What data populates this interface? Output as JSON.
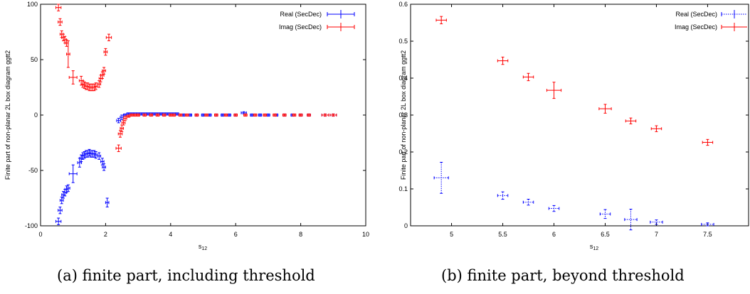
{
  "captions": [
    "(a) finite part, including threshold",
    "(b) finite part, beyond threshold"
  ],
  "chart_data": [
    {
      "type": "scatter",
      "ylabel": "Finite part of non-planar 2L box diagram ggtt2",
      "xlabel_main": "s",
      "xlabel_sub": "12",
      "xlim": [
        0,
        10
      ],
      "ylim": [
        -100,
        100
      ],
      "xticks": [
        "0",
        "2",
        "4",
        "6",
        "8",
        "10"
      ],
      "yticks": [
        "-100",
        "-50",
        "0",
        "50",
        "100"
      ],
      "legend_position": "top-right",
      "series": [
        {
          "name": "Real (SecDec)",
          "color": "#0000ff",
          "points": [
            {
              "x": 0.55,
              "y": -96,
              "ex": 0.08,
              "ey": 3
            },
            {
              "x": 0.6,
              "y": -86,
              "ex": 0.06,
              "ey": 3
            },
            {
              "x": 0.65,
              "y": -77,
              "ex": 0.05,
              "ey": 3
            },
            {
              "x": 0.7,
              "y": -72,
              "ex": 0.05,
              "ey": 3
            },
            {
              "x": 0.75,
              "y": -70,
              "ex": 0.05,
              "ey": 3
            },
            {
              "x": 0.8,
              "y": -67,
              "ex": 0.05,
              "ey": 3
            },
            {
              "x": 0.85,
              "y": -66,
              "ex": 0.05,
              "ey": 3
            },
            {
              "x": 1.0,
              "y": -53,
              "ex": 0.12,
              "ey": 8
            },
            {
              "x": 1.2,
              "y": -43,
              "ex": 0.06,
              "ey": 4
            },
            {
              "x": 1.25,
              "y": -39,
              "ex": 0.05,
              "ey": 3
            },
            {
              "x": 1.3,
              "y": -37,
              "ex": 0.05,
              "ey": 3
            },
            {
              "x": 1.35,
              "y": -36,
              "ex": 0.05,
              "ey": 3
            },
            {
              "x": 1.4,
              "y": -35,
              "ex": 0.05,
              "ey": 3
            },
            {
              "x": 1.45,
              "y": -35,
              "ex": 0.05,
              "ey": 3
            },
            {
              "x": 1.5,
              "y": -34,
              "ex": 0.05,
              "ey": 3
            },
            {
              "x": 1.55,
              "y": -35,
              "ex": 0.05,
              "ey": 3
            },
            {
              "x": 1.6,
              "y": -35,
              "ex": 0.05,
              "ey": 3
            },
            {
              "x": 1.65,
              "y": -35,
              "ex": 0.05,
              "ey": 3
            },
            {
              "x": 1.7,
              "y": -36,
              "ex": 0.05,
              "ey": 3
            },
            {
              "x": 1.8,
              "y": -37,
              "ex": 0.05,
              "ey": 3
            },
            {
              "x": 1.9,
              "y": -42,
              "ex": 0.05,
              "ey": 3
            },
            {
              "x": 1.95,
              "y": -47,
              "ex": 0.05,
              "ey": 3
            },
            {
              "x": 2.05,
              "y": -79,
              "ex": 0.05,
              "ey": 4
            },
            {
              "x": 2.4,
              "y": -5,
              "ex": 0.06,
              "ey": 2
            },
            {
              "x": 2.5,
              "y": -2,
              "ex": 0.05,
              "ey": 2
            },
            {
              "x": 2.6,
              "y": 0,
              "ex": 0.05,
              "ey": 1
            },
            {
              "x": 2.7,
              "y": 1,
              "ex": 0.05,
              "ey": 1
            },
            {
              "x": 2.8,
              "y": 1,
              "ex": 0.05,
              "ey": 1
            },
            {
              "x": 2.9,
              "y": 1,
              "ex": 0.05,
              "ey": 1
            },
            {
              "x": 3.0,
              "y": 1,
              "ex": 0.05,
              "ey": 1
            },
            {
              "x": 3.1,
              "y": 1,
              "ex": 0.05,
              "ey": 1
            },
            {
              "x": 3.2,
              "y": 1,
              "ex": 0.05,
              "ey": 1
            },
            {
              "x": 3.3,
              "y": 1,
              "ex": 0.05,
              "ey": 1
            },
            {
              "x": 3.4,
              "y": 1,
              "ex": 0.05,
              "ey": 1
            },
            {
              "x": 3.5,
              "y": 1,
              "ex": 0.05,
              "ey": 1
            },
            {
              "x": 3.6,
              "y": 1,
              "ex": 0.05,
              "ey": 1
            },
            {
              "x": 3.7,
              "y": 1,
              "ex": 0.05,
              "ey": 1
            },
            {
              "x": 3.8,
              "y": 1,
              "ex": 0.05,
              "ey": 1
            },
            {
              "x": 3.9,
              "y": 1,
              "ex": 0.05,
              "ey": 1
            },
            {
              "x": 4.0,
              "y": 1,
              "ex": 0.05,
              "ey": 1
            },
            {
              "x": 4.1,
              "y": 1,
              "ex": 0.05,
              "ey": 1
            },
            {
              "x": 4.2,
              "y": 1,
              "ex": 0.05,
              "ey": 1
            },
            {
              "x": 4.4,
              "y": 0,
              "ex": 0.05,
              "ey": 1
            },
            {
              "x": 4.6,
              "y": 0,
              "ex": 0.05,
              "ey": 1
            },
            {
              "x": 4.8,
              "y": 0,
              "ex": 0.05,
              "ey": 1
            },
            {
              "x": 5.0,
              "y": 0,
              "ex": 0.05,
              "ey": 1
            },
            {
              "x": 5.2,
              "y": 0,
              "ex": 0.05,
              "ey": 1
            },
            {
              "x": 5.4,
              "y": 0,
              "ex": 0.05,
              "ey": 1
            },
            {
              "x": 5.6,
              "y": 0,
              "ex": 0.05,
              "ey": 1
            },
            {
              "x": 5.8,
              "y": 0,
              "ex": 0.05,
              "ey": 1
            },
            {
              "x": 6.0,
              "y": 0,
              "ex": 0.05,
              "ey": 1
            },
            {
              "x": 6.25,
              "y": 2,
              "ex": 0.08,
              "ey": 1
            },
            {
              "x": 6.5,
              "y": 0,
              "ex": 0.05,
              "ey": 1
            },
            {
              "x": 6.75,
              "y": 0,
              "ex": 0.05,
              "ey": 1
            },
            {
              "x": 7.0,
              "y": 0,
              "ex": 0.05,
              "ey": 1
            },
            {
              "x": 7.25,
              "y": 0,
              "ex": 0.05,
              "ey": 1
            },
            {
              "x": 7.5,
              "y": 0,
              "ex": 0.05,
              "ey": 1
            },
            {
              "x": 7.75,
              "y": 0,
              "ex": 0.05,
              "ey": 1
            },
            {
              "x": 8.0,
              "y": 0,
              "ex": 0.05,
              "ey": 1
            },
            {
              "x": 8.25,
              "y": 0,
              "ex": 0.05,
              "ey": 1
            },
            {
              "x": 8.75,
              "y": 0,
              "ex": 0.1,
              "ey": 1
            },
            {
              "x": 9.0,
              "y": 0,
              "ex": 0.1,
              "ey": 1
            }
          ]
        },
        {
          "name": "Imag (SecDec)",
          "color": "#ff0000",
          "points": [
            {
              "x": 0.55,
              "y": 97,
              "ex": 0.08,
              "ey": 3
            },
            {
              "x": 0.6,
              "y": 84,
              "ex": 0.06,
              "ey": 3
            },
            {
              "x": 0.65,
              "y": 73,
              "ex": 0.05,
              "ey": 3
            },
            {
              "x": 0.7,
              "y": 70,
              "ex": 0.05,
              "ey": 3
            },
            {
              "x": 0.75,
              "y": 68,
              "ex": 0.05,
              "ey": 3
            },
            {
              "x": 0.8,
              "y": 65,
              "ex": 0.05,
              "ey": 3
            },
            {
              "x": 0.85,
              "y": 55,
              "ex": 0.05,
              "ey": 12
            },
            {
              "x": 1.0,
              "y": 34,
              "ex": 0.12,
              "ey": 6
            },
            {
              "x": 1.25,
              "y": 31,
              "ex": 0.06,
              "ey": 4
            },
            {
              "x": 1.3,
              "y": 28,
              "ex": 0.05,
              "ey": 3
            },
            {
              "x": 1.35,
              "y": 27,
              "ex": 0.05,
              "ey": 3
            },
            {
              "x": 1.4,
              "y": 26,
              "ex": 0.05,
              "ey": 3
            },
            {
              "x": 1.45,
              "y": 26,
              "ex": 0.05,
              "ey": 3
            },
            {
              "x": 1.5,
              "y": 25,
              "ex": 0.05,
              "ey": 3
            },
            {
              "x": 1.55,
              "y": 25,
              "ex": 0.05,
              "ey": 3
            },
            {
              "x": 1.6,
              "y": 25,
              "ex": 0.05,
              "ey": 3
            },
            {
              "x": 1.65,
              "y": 25,
              "ex": 0.05,
              "ey": 3
            },
            {
              "x": 1.7,
              "y": 26,
              "ex": 0.05,
              "ey": 3
            },
            {
              "x": 1.8,
              "y": 28,
              "ex": 0.05,
              "ey": 3
            },
            {
              "x": 1.85,
              "y": 33,
              "ex": 0.05,
              "ey": 3
            },
            {
              "x": 1.9,
              "y": 36,
              "ex": 0.05,
              "ey": 3
            },
            {
              "x": 1.95,
              "y": 40,
              "ex": 0.05,
              "ey": 3
            },
            {
              "x": 2.0,
              "y": 57,
              "ex": 0.05,
              "ey": 3
            },
            {
              "x": 2.1,
              "y": 70,
              "ex": 0.08,
              "ey": 3
            },
            {
              "x": 2.4,
              "y": -30,
              "ex": 0.08,
              "ey": 3
            },
            {
              "x": 2.45,
              "y": -17,
              "ex": 0.06,
              "ey": 3
            },
            {
              "x": 2.5,
              "y": -12,
              "ex": 0.05,
              "ey": 3
            },
            {
              "x": 2.55,
              "y": -7,
              "ex": 0.05,
              "ey": 2
            },
            {
              "x": 2.6,
              "y": -3,
              "ex": 0.05,
              "ey": 2
            },
            {
              "x": 2.7,
              "y": -1,
              "ex": 0.05,
              "ey": 1
            },
            {
              "x": 2.8,
              "y": 0,
              "ex": 0.05,
              "ey": 1
            },
            {
              "x": 2.9,
              "y": 0,
              "ex": 0.05,
              "ey": 1
            },
            {
              "x": 3.0,
              "y": 0,
              "ex": 0.05,
              "ey": 1
            },
            {
              "x": 3.2,
              "y": 0,
              "ex": 0.05,
              "ey": 1
            },
            {
              "x": 3.4,
              "y": 0,
              "ex": 0.05,
              "ey": 1
            },
            {
              "x": 3.6,
              "y": 0,
              "ex": 0.05,
              "ey": 1
            },
            {
              "x": 3.8,
              "y": 0,
              "ex": 0.05,
              "ey": 1
            },
            {
              "x": 4.0,
              "y": 0,
              "ex": 0.05,
              "ey": 1
            },
            {
              "x": 4.1,
              "y": 0,
              "ex": 0.05,
              "ey": 1
            },
            {
              "x": 4.3,
              "y": 0,
              "ex": 0.05,
              "ey": 1
            },
            {
              "x": 4.5,
              "y": 0,
              "ex": 0.05,
              "ey": 1
            },
            {
              "x": 4.8,
              "y": 0,
              "ex": 0.05,
              "ey": 1
            },
            {
              "x": 5.1,
              "y": 0,
              "ex": 0.05,
              "ey": 1
            },
            {
              "x": 5.4,
              "y": 0,
              "ex": 0.05,
              "ey": 1
            },
            {
              "x": 5.7,
              "y": 0,
              "ex": 0.05,
              "ey": 1
            },
            {
              "x": 6.0,
              "y": 0,
              "ex": 0.05,
              "ey": 1
            },
            {
              "x": 6.3,
              "y": 0,
              "ex": 0.05,
              "ey": 1
            },
            {
              "x": 6.6,
              "y": 0,
              "ex": 0.05,
              "ey": 1
            },
            {
              "x": 6.9,
              "y": 0,
              "ex": 0.05,
              "ey": 1
            },
            {
              "x": 7.2,
              "y": 0,
              "ex": 0.05,
              "ey": 1
            },
            {
              "x": 7.5,
              "y": 0,
              "ex": 0.05,
              "ey": 1
            },
            {
              "x": 7.8,
              "y": 0,
              "ex": 0.05,
              "ey": 1
            },
            {
              "x": 8.0,
              "y": 0,
              "ex": 0.05,
              "ey": 1
            },
            {
              "x": 8.25,
              "y": 0,
              "ex": 0.05,
              "ey": 1
            },
            {
              "x": 8.75,
              "y": 0,
              "ex": 0.1,
              "ey": 1
            },
            {
              "x": 9.0,
              "y": 0,
              "ex": 0.1,
              "ey": 1
            }
          ]
        }
      ]
    },
    {
      "type": "scatter",
      "ylabel": "Finite part of non-planar 2L box diagram ggtt2",
      "xlabel_main": "s",
      "xlabel_sub": "12",
      "xlim": [
        4.6,
        7.9
      ],
      "ylim": [
        0,
        0.6
      ],
      "xticks": [
        "5",
        "5.5",
        "6",
        "6.5",
        "7",
        "7.5"
      ],
      "xtick_values": [
        5,
        5.5,
        6,
        6.5,
        7,
        7.5
      ],
      "yticks": [
        "0",
        "0.1",
        "0.2",
        "0.3",
        "0.4",
        "0.5",
        "0.6"
      ],
      "legend_position": "top-right",
      "series": [
        {
          "name": "Real (SecDec)",
          "color": "#0000ff",
          "dotted_errorbars": true,
          "points": [
            {
              "x": 4.9,
              "y": 0.13,
              "ex": 0.07,
              "ey": 0.042
            },
            {
              "x": 5.5,
              "y": 0.082,
              "ex": 0.05,
              "ey": 0.01
            },
            {
              "x": 5.75,
              "y": 0.064,
              "ex": 0.05,
              "ey": 0.008
            },
            {
              "x": 6.0,
              "y": 0.047,
              "ex": 0.05,
              "ey": 0.008
            },
            {
              "x": 6.5,
              "y": 0.032,
              "ex": 0.05,
              "ey": 0.012
            },
            {
              "x": 6.75,
              "y": 0.017,
              "ex": 0.06,
              "ey": 0.028
            },
            {
              "x": 7.0,
              "y": 0.01,
              "ex": 0.06,
              "ey": 0.006
            },
            {
              "x": 7.5,
              "y": 0.004,
              "ex": 0.06,
              "ey": 0.004
            }
          ]
        },
        {
          "name": "Imag (SecDec)",
          "color": "#ff0000",
          "points": [
            {
              "x": 4.9,
              "y": 0.557,
              "ex": 0.05,
              "ey": 0.01
            },
            {
              "x": 5.5,
              "y": 0.447,
              "ex": 0.05,
              "ey": 0.01
            },
            {
              "x": 5.75,
              "y": 0.403,
              "ex": 0.05,
              "ey": 0.01
            },
            {
              "x": 6.0,
              "y": 0.367,
              "ex": 0.07,
              "ey": 0.022
            },
            {
              "x": 6.5,
              "y": 0.317,
              "ex": 0.06,
              "ey": 0.012
            },
            {
              "x": 6.75,
              "y": 0.284,
              "ex": 0.05,
              "ey": 0.008
            },
            {
              "x": 7.0,
              "y": 0.263,
              "ex": 0.05,
              "ey": 0.008
            },
            {
              "x": 7.5,
              "y": 0.226,
              "ex": 0.05,
              "ey": 0.008
            }
          ]
        }
      ]
    }
  ]
}
